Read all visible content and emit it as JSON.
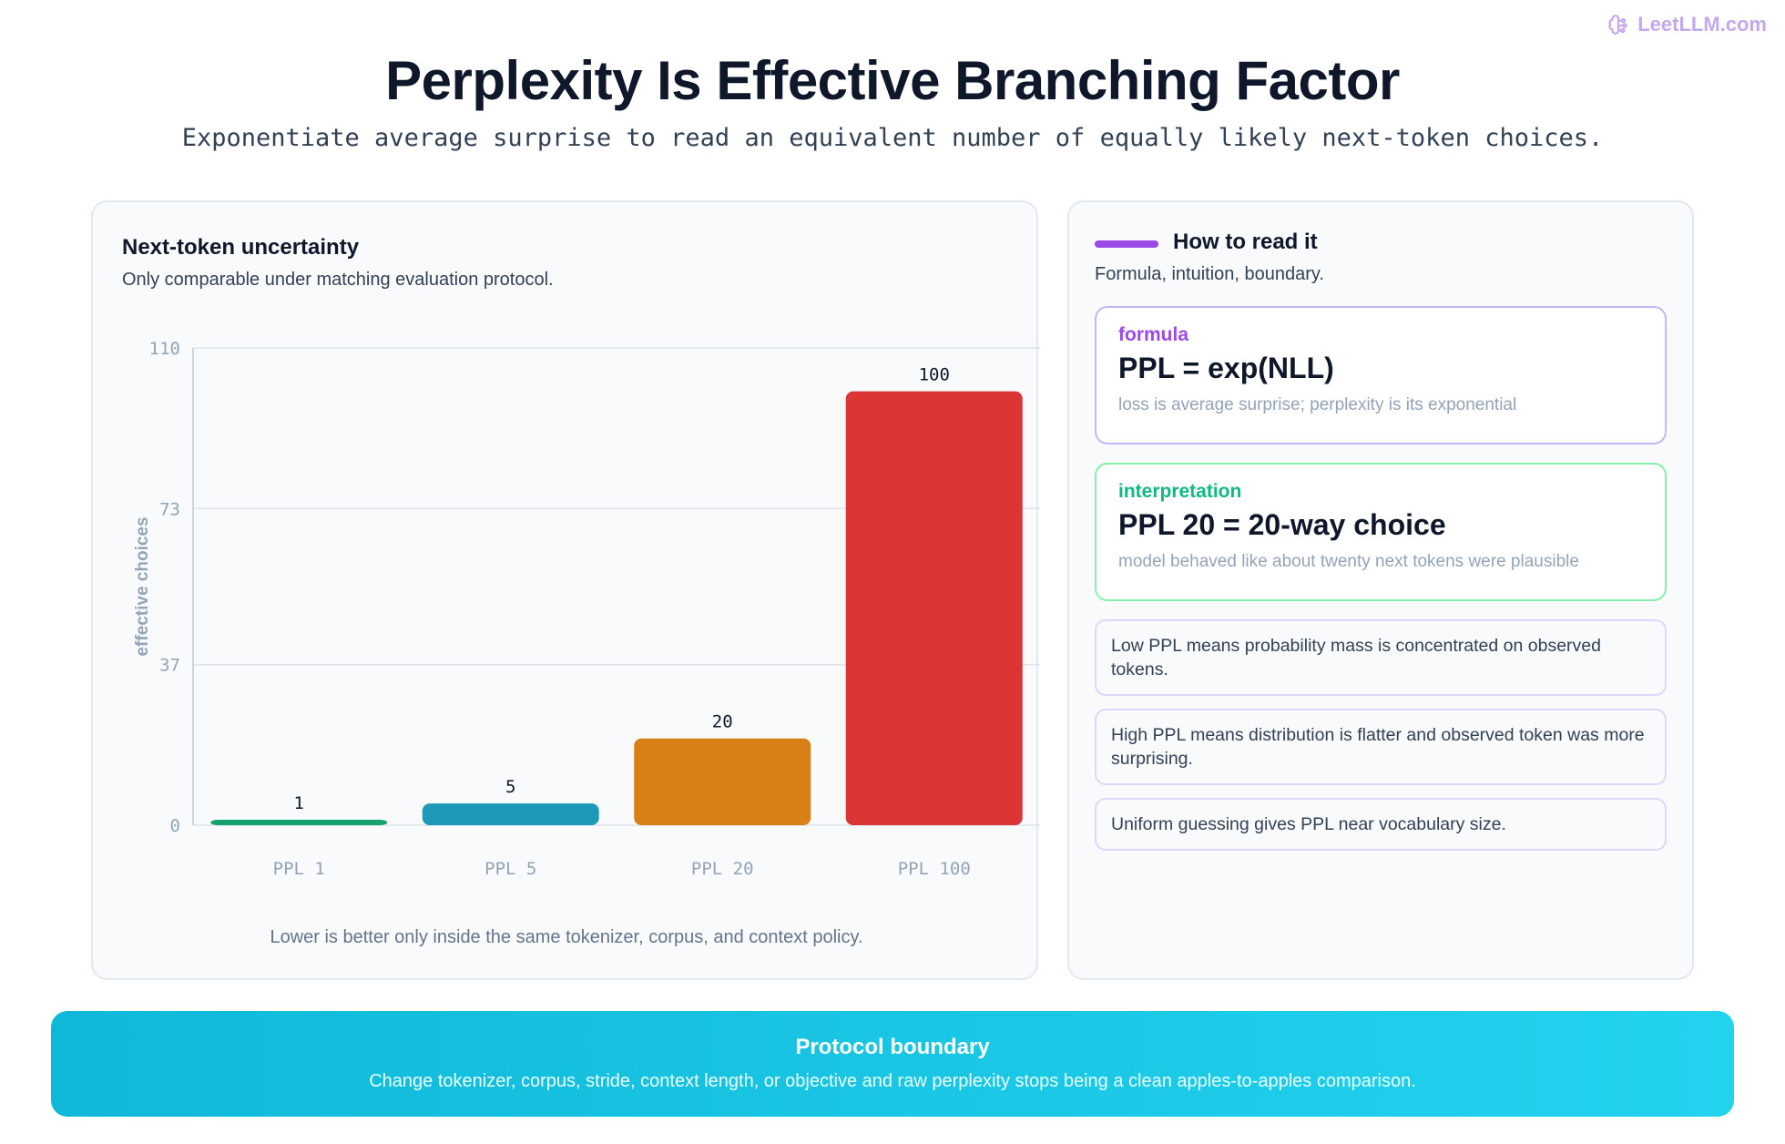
{
  "brand": {
    "name": "LeetLLM.com",
    "icon": "brain-icon",
    "color": "#c4a8ee"
  },
  "header": {
    "title": "Perplexity Is Effective Branching Factor",
    "subtitle": "Exponentiate average surprise to read an equivalent number of equally likely next-token choices."
  },
  "left_panel": {
    "title": "Next-token uncertainty",
    "subtitle": "Only comparable under matching evaluation protocol.",
    "footer": "Lower is better only inside the same tokenizer, corpus, and context policy."
  },
  "chart_data": {
    "type": "bar",
    "categories": [
      "PPL 1",
      "PPL 5",
      "PPL 20",
      "PPL 100"
    ],
    "values": [
      1,
      5,
      20,
      100
    ],
    "data_labels": [
      "1",
      "5",
      "20",
      "100"
    ],
    "colors": [
      "#16a06e",
      "#1e9ab8",
      "#d97f17",
      "#dc3535"
    ],
    "ylabel": "effective choices",
    "yticks": [
      0,
      37,
      73,
      110
    ],
    "ylim": [
      0,
      110
    ],
    "grid": true
  },
  "right_panel": {
    "title": "How to read it",
    "subtitle": "Formula, intuition, boundary.",
    "accent_color": "#9b4ae8",
    "cards": [
      {
        "tag": "formula",
        "main": "PPL = exp(NLL)",
        "note": "loss is average surprise; perplexity is its exponential"
      },
      {
        "tag": "interpretation",
        "main": "PPL 20 = 20-way choice",
        "note": "model behaved like about twenty next tokens were plausible"
      }
    ],
    "notes": [
      "Low PPL means probability mass is concentrated on observed tokens.",
      "High PPL means distribution is flatter and observed token was more surprising.",
      "Uniform guessing gives PPL near vocabulary size."
    ]
  },
  "banner": {
    "title": "Protocol boundary",
    "text": "Change tokenizer, corpus, stride, context length, or objective and raw perplexity stops being a clean apples-to-apples comparison."
  }
}
